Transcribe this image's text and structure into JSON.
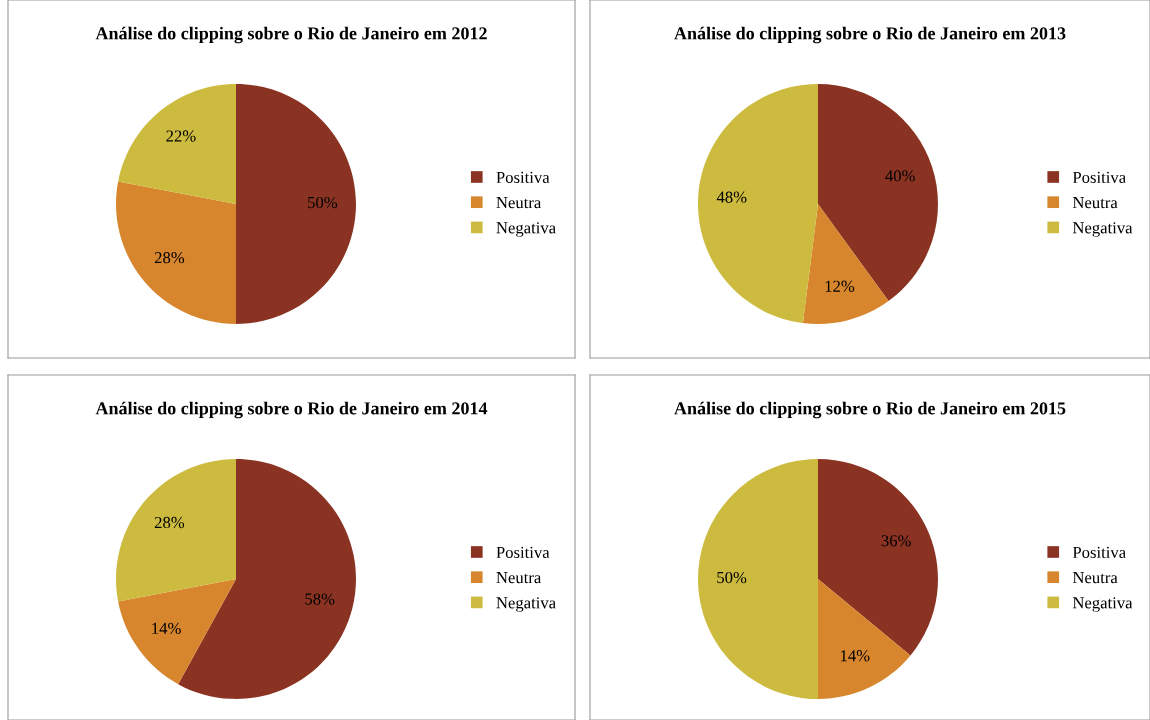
{
  "chart_data": [
    {
      "type": "pie",
      "title": "Análise do clipping sobre o Rio de Janeiro em 2012",
      "categories": [
        "Positiva",
        "Neutra",
        "Negativa"
      ],
      "values": [
        50,
        28,
        22
      ],
      "colors": [
        "#8b3322",
        "#d8862e",
        "#cdbb3f"
      ],
      "value_labels": [
        "50%",
        "28%",
        "22%"
      ],
      "legend": "right"
    },
    {
      "type": "pie",
      "title": "Análise do clipping sobre o Rio de Janeiro em 2013",
      "categories": [
        "Positiva",
        "Neutra",
        "Negativa"
      ],
      "values": [
        40,
        12,
        48
      ],
      "colors": [
        "#8b3322",
        "#d8862e",
        "#cdbb3f"
      ],
      "value_labels": [
        "40%",
        "12%",
        "48%"
      ],
      "legend": "right"
    },
    {
      "type": "pie",
      "title": "Análise do clipping sobre o Rio de Janeiro em 2014",
      "categories": [
        "Positiva",
        "Neutra",
        "Negativa"
      ],
      "values": [
        58,
        14,
        28
      ],
      "colors": [
        "#8b3322",
        "#d8862e",
        "#cdbb3f"
      ],
      "value_labels": [
        "58%",
        "14%",
        "28%"
      ],
      "legend": "right"
    },
    {
      "type": "pie",
      "title": "Análise do clipping sobre o Rio de Janeiro em 2015",
      "categories": [
        "Positiva",
        "Neutra",
        "Negativa"
      ],
      "values": [
        36,
        14,
        50
      ],
      "colors": [
        "#8b3322",
        "#d8862e",
        "#cdbb3f"
      ],
      "value_labels": [
        "36%",
        "14%",
        "50%"
      ],
      "legend": "right"
    }
  ]
}
